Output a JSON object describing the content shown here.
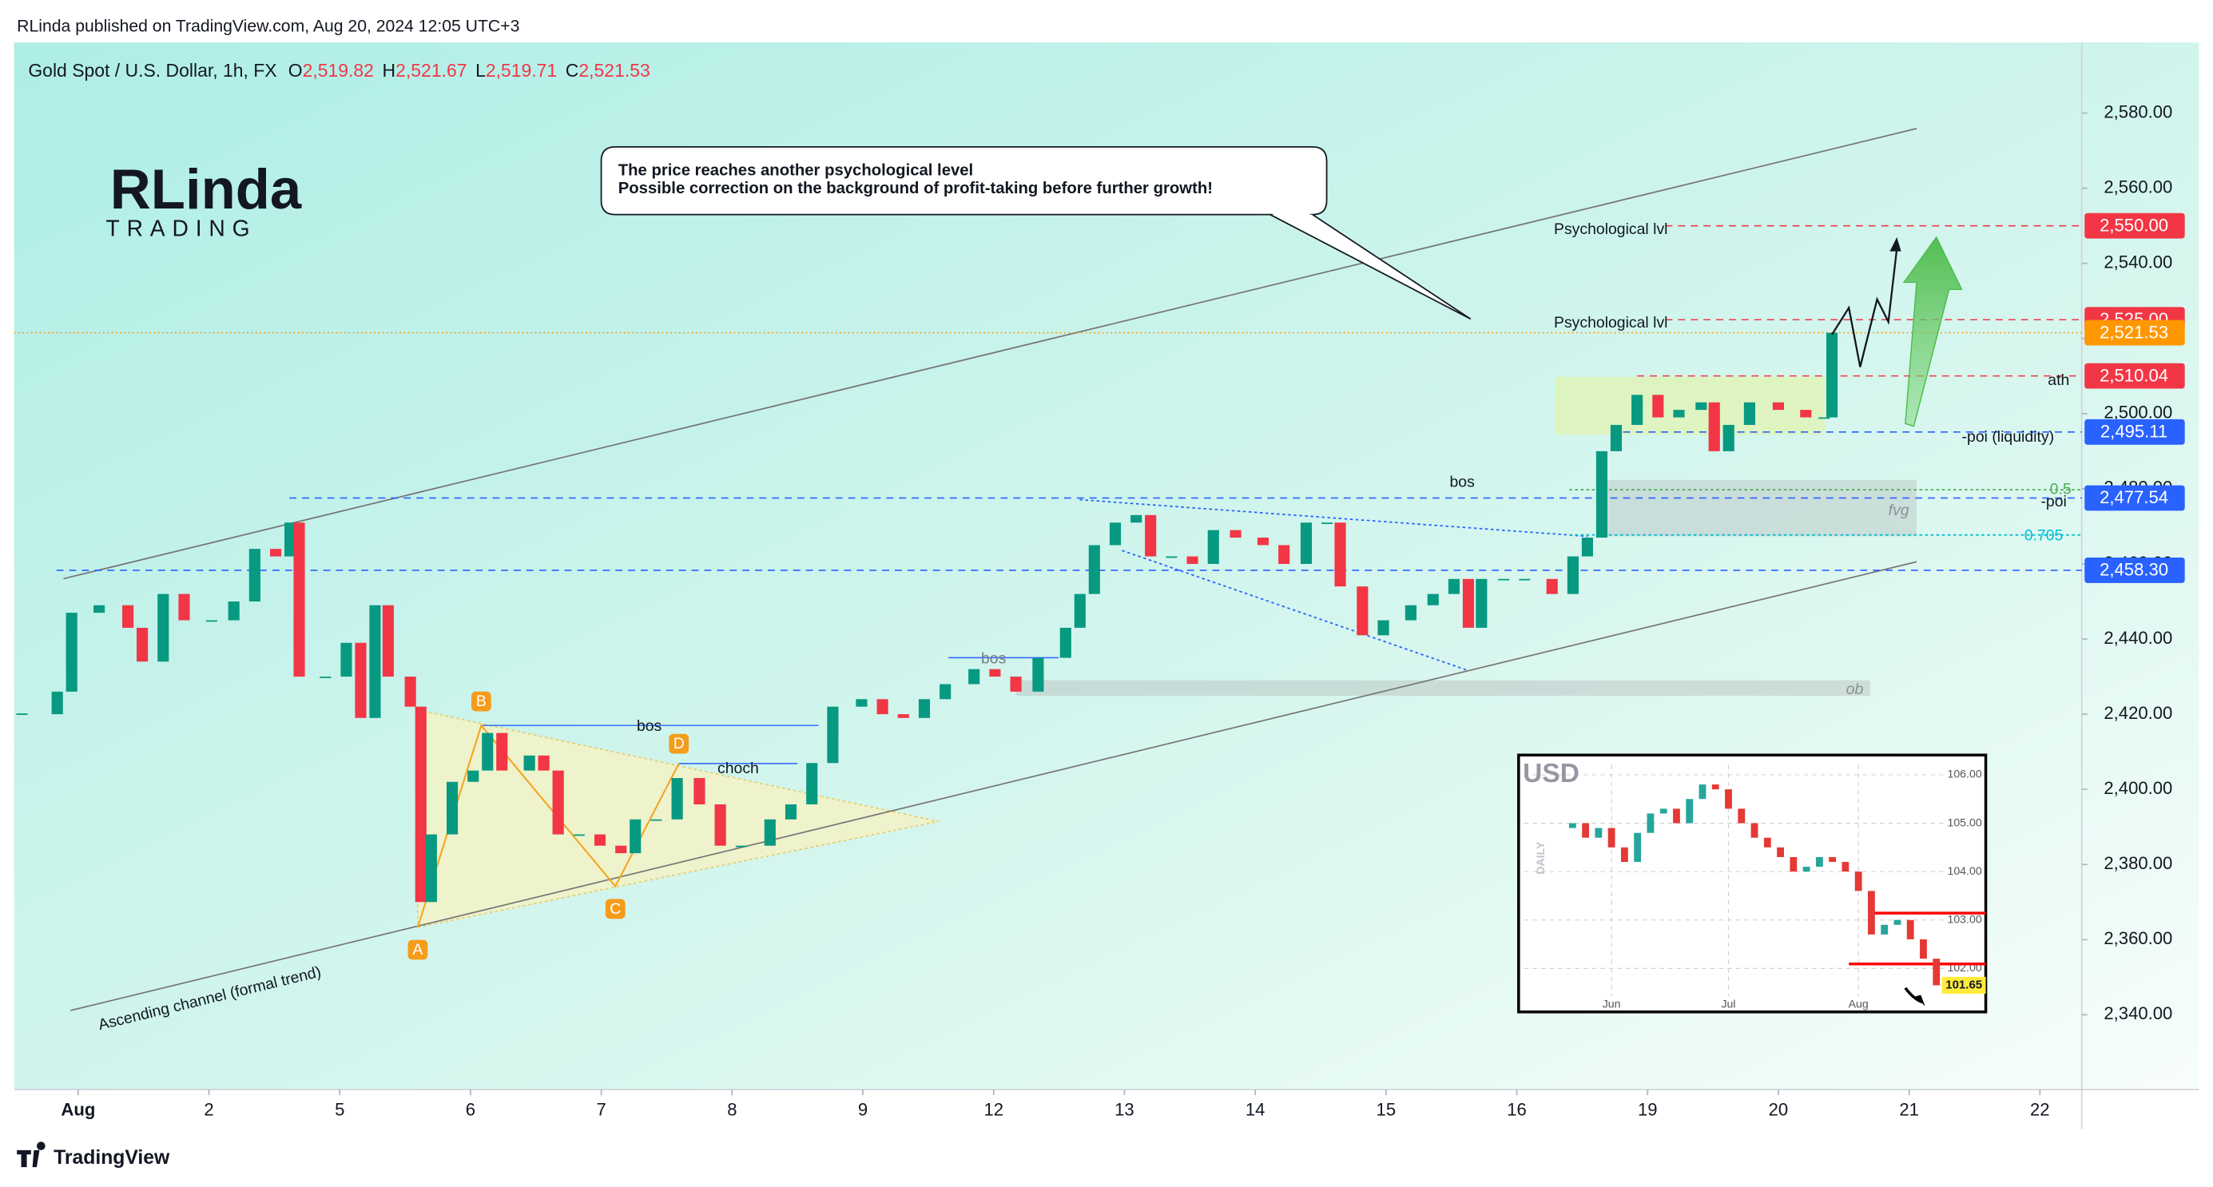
{
  "header": {
    "published": "RLinda published on TradingView.com, Aug 20, 2024 12:05 UTC+3",
    "footer": "TradingView"
  },
  "logo": {
    "name": "RLinda",
    "sub": "TRADING"
  },
  "legend": {
    "symbol": "Gold Spot / U.S. Dollar, 1h, FX",
    "ohlc": [
      {
        "key": "O",
        "value": "2,519.82"
      },
      {
        "key": "H",
        "value": "2,521.67"
      },
      {
        "key": "L",
        "value": "2,519.71"
      },
      {
        "key": "C",
        "value": "2,521.53"
      }
    ]
  },
  "chart_data": {
    "type": "candlestick",
    "x": [
      -0.43,
      -0.16,
      -0.05,
      0.16,
      0.38,
      0.49,
      0.65,
      0.81,
      1.02,
      1.19,
      1.35,
      1.51,
      1.62,
      1.69,
      1.89,
      2.05,
      2.16,
      2.27,
      2.37,
      2.54,
      2.62,
      2.7,
      2.86,
      3.02,
      3.13,
      3.24,
      3.45,
      3.56,
      3.67,
      3.83,
      3.99,
      4.15,
      4.26,
      4.42,
      4.58,
      4.75,
      4.91,
      5.07,
      5.29,
      5.45,
      5.61,
      5.77,
      5.99,
      6.15,
      6.31,
      6.47,
      6.63,
      6.85,
      7.01,
      7.17,
      7.34,
      7.55,
      7.66,
      7.77,
      7.93,
      8.09,
      8.2,
      8.36,
      8.52,
      8.68,
      8.85,
      9.06,
      9.22,
      9.39,
      9.55,
      9.65,
      9.82,
      9.98,
      10.19,
      10.36,
      10.52,
      10.63,
      10.73,
      10.9,
      11.06,
      11.27,
      11.43,
      11.54,
      11.65,
      11.76,
      11.92,
      12.08,
      12.24,
      12.41,
      12.51,
      12.62,
      12.78,
      13.0,
      13.21,
      13.35,
      13.41
    ],
    "close": [
      2420,
      2426,
      2447,
      2449,
      2443,
      2434,
      2452,
      2445,
      2445,
      2450,
      2464,
      2462,
      2471,
      2430,
      2430,
      2439,
      2419,
      2449,
      2430,
      2422,
      2370,
      2388,
      2402,
      2405,
      2415,
      2405,
      2409,
      2405,
      2388,
      2388,
      2385,
      2383,
      2392,
      2392,
      2403,
      2396,
      2385,
      2385,
      2392,
      2396,
      2407,
      2422,
      2424,
      2420,
      2419,
      2424,
      2428,
      2432,
      2430,
      2426,
      2435,
      2443,
      2452,
      2465,
      2471,
      2473,
      2462,
      2462,
      2460,
      2469,
      2467,
      2465,
      2460,
      2471,
      2471,
      2454,
      2441,
      2445,
      2449,
      2452,
      2456,
      2443,
      2456,
      2456,
      2456,
      2452,
      2462,
      2467,
      2490,
      2497,
      2505,
      2499,
      2501,
      2503,
      2490,
      2497,
      2503,
      2501,
      2499,
      2499,
      2521.53
    ],
    "colors": {
      "up": "#089981",
      "down": "#f23645"
    },
    "xlim": [
      -0.49,
      15.32
    ],
    "xticks": [
      {
        "value": 0,
        "label": "Aug"
      },
      {
        "value": 1,
        "label": "2"
      },
      {
        "value": 2,
        "label": "5"
      },
      {
        "value": 3,
        "label": "6"
      },
      {
        "value": 4,
        "label": "7"
      },
      {
        "value": 5,
        "label": "8"
      },
      {
        "value": 6,
        "label": "9"
      },
      {
        "value": 7,
        "label": "12"
      },
      {
        "value": 8,
        "label": "13"
      },
      {
        "value": 9,
        "label": "14"
      },
      {
        "value": 10,
        "label": "15"
      },
      {
        "value": 11,
        "label": "16"
      },
      {
        "value": 12,
        "label": "19"
      },
      {
        "value": 13,
        "label": "20"
      },
      {
        "value": 14,
        "label": "21"
      },
      {
        "value": 15,
        "label": "22"
      }
    ],
    "ylim": [
      2320.1,
      2598.8
    ],
    "yticks": [
      {
        "value": 2340,
        "label": "2,340.00"
      },
      {
        "value": 2360,
        "label": "2,360.00"
      },
      {
        "value": 2380,
        "label": "2,380.00"
      },
      {
        "value": 2400,
        "label": "2,400.00"
      },
      {
        "value": 2420,
        "label": "2,420.00"
      },
      {
        "value": 2440,
        "label": "2,440.00"
      },
      {
        "value": 2460,
        "label": "2,460.00"
      },
      {
        "value": 2480,
        "label": "2,480.00"
      },
      {
        "value": 2500,
        "label": "2,500.00"
      },
      {
        "value": 2520,
        "label": "2,520.00"
      },
      {
        "value": 2540,
        "label": "2,540.00"
      },
      {
        "value": 2560,
        "label": "2,560.00"
      },
      {
        "value": 2580,
        "label": "2,580.00"
      }
    ],
    "price_levels": [
      {
        "value": 2550,
        "label": "2,550.00",
        "color": "#f23645"
      },
      {
        "value": 2525,
        "label": "2,525.00",
        "color": "#f23645"
      },
      {
        "value": 2510.04,
        "label": "2,510.04",
        "color": "#f23645"
      },
      {
        "value": 2495.11,
        "label": "2,495.11",
        "color": "#2962ff"
      },
      {
        "value": 2477.54,
        "label": "2,477.54",
        "color": "#2962ff"
      },
      {
        "value": 2458.3,
        "label": "2,458.30",
        "color": "#2962ff"
      },
      {
        "value": 2521.53,
        "label": "2,521.53",
        "color": "#ff9800"
      }
    ],
    "annotations": [
      "Psychological lvl",
      "Psychological lvl",
      "ath",
      "-poi (liquidity)",
      "-poi",
      "0.5",
      "0.705",
      "fvg",
      "bos",
      "bos",
      "bos",
      "choch",
      "ob",
      "Ascending channel (formal trend)"
    ],
    "pattern_points": [
      "A",
      "B",
      "C",
      "D"
    ],
    "callout": [
      "The price reaches another psychological level",
      "Possible correction on the background of profit-taking before further growth!"
    ]
  },
  "inset": {
    "title": "USD",
    "axis_label": "DAILY",
    "values": [
      104.9,
      105.0,
      104.7,
      104.9,
      104.5,
      104.2,
      104.8,
      105.2,
      105.3,
      105.0,
      105.5,
      105.8,
      105.7,
      105.3,
      105.0,
      104.7,
      104.5,
      104.3,
      104.0,
      104.1,
      104.3,
      104.2,
      104.0,
      103.6,
      102.7,
      102.9,
      103.0,
      102.6,
      102.2,
      101.65
    ],
    "last_label": "101.65",
    "xlim": [
      0,
      29
    ],
    "ylim": [
      101.5,
      106.3
    ],
    "yticks": [
      {
        "value": 102,
        "label": "102.00"
      },
      {
        "value": 103,
        "label": "103.00"
      },
      {
        "value": 104,
        "label": "104.00"
      },
      {
        "value": 105,
        "label": "105.00"
      },
      {
        "value": 106,
        "label": "106.00"
      }
    ],
    "xticks": [
      {
        "value": 4,
        "label": "Jun"
      },
      {
        "value": 13,
        "label": "Jul"
      },
      {
        "value": 23,
        "label": "Aug"
      }
    ]
  }
}
